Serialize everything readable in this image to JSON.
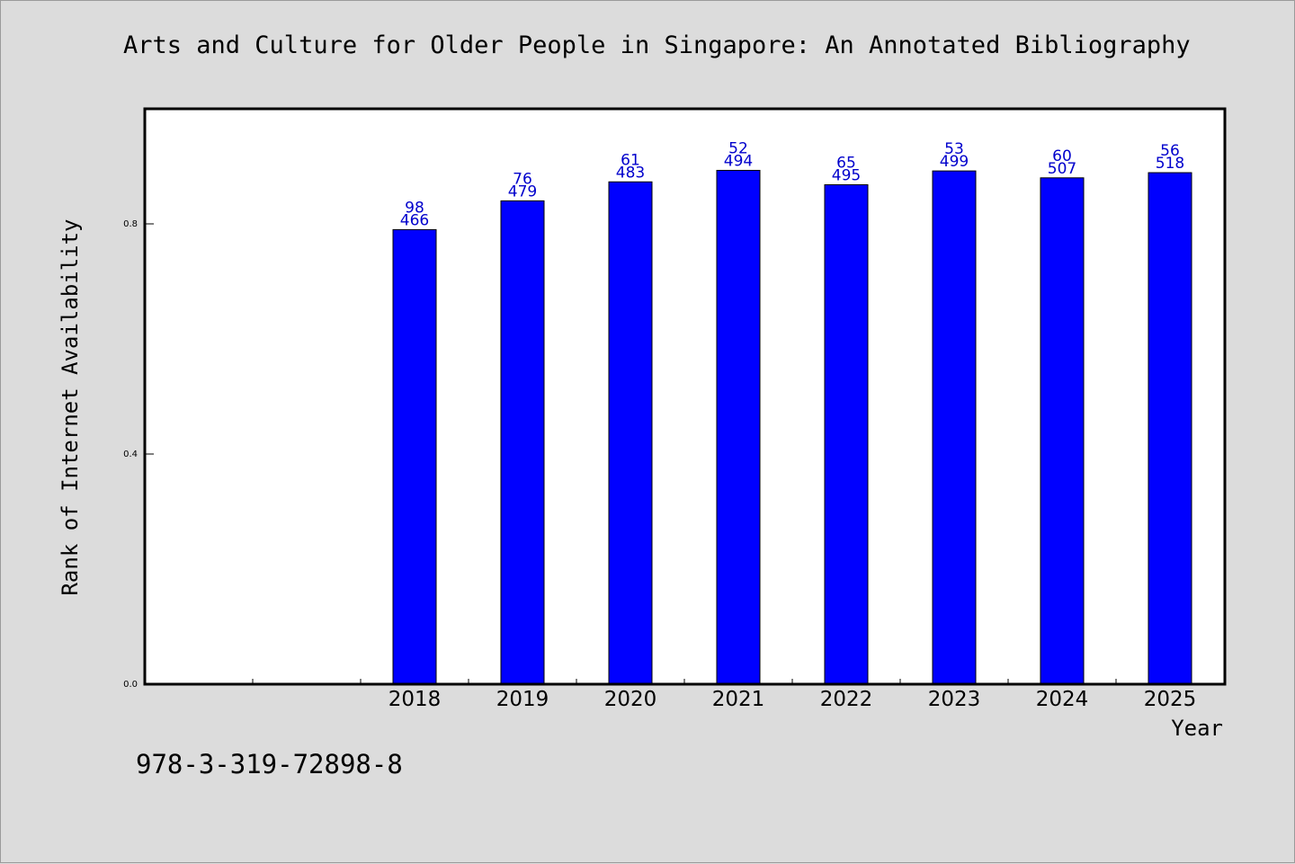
{
  "chart_data": {
    "type": "bar",
    "title": "Arts and Culture for Older People in Singapore: An Annotated Bibliography",
    "xlabel": "Year",
    "ylabel": "Rank of Internet Availability",
    "categories": [
      "2018",
      "2019",
      "2020",
      "2021",
      "2022",
      "2023",
      "2024",
      "2025"
    ],
    "values": [
      0.79,
      0.84,
      0.873,
      0.893,
      0.868,
      0.892,
      0.88,
      0.889
    ],
    "bar_labels_top": [
      "98",
      "76",
      "61",
      "52",
      "65",
      "53",
      "60",
      "56"
    ],
    "bar_labels_bottom": [
      "466",
      "479",
      "483",
      "494",
      "495",
      "499",
      "507",
      "518"
    ],
    "yticks": [
      "0.0",
      "0.4",
      "0.8"
    ],
    "ylim": [
      0,
      1.0
    ],
    "bar_color": "#0000ff",
    "label_color": "#0000cc",
    "grid": false,
    "legend": false
  },
  "footer": {
    "isbn": "978-3-319-72898-8"
  }
}
